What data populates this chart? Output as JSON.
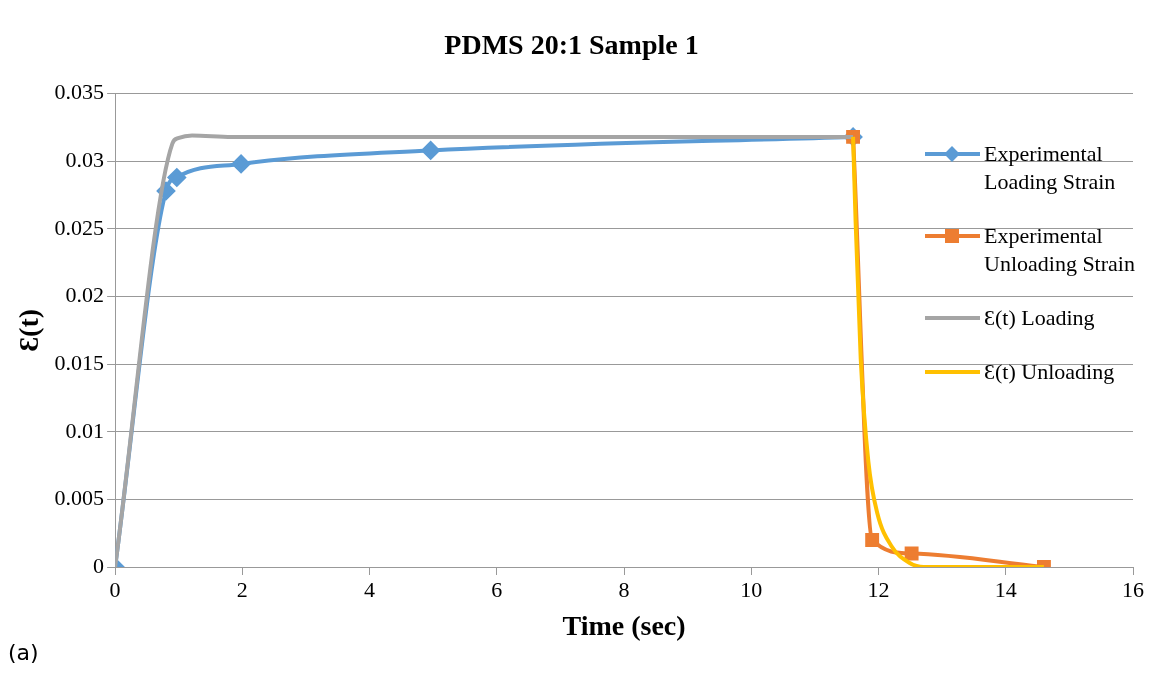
{
  "chart_data": {
    "type": "line",
    "title": "PDMS 20:1 Sample 1",
    "xlabel": "Time (sec)",
    "ylabel": "Ɛ(t)",
    "annotations": [
      "(a)"
    ],
    "series": [
      {
        "name": "Experimental Loading Strain",
        "color": "#5b9bd5",
        "marker": "diamond",
        "x": [
          0,
          0.8,
          0.97,
          1.98,
          4.96,
          11.6
        ],
        "values": [
          0,
          0.0278,
          0.0288,
          0.0298,
          0.0308,
          0.0318
        ]
      },
      {
        "name": "Experimental Unloading Strain",
        "color": "#ed7d31",
        "marker": "square",
        "x": [
          11.6,
          11.9,
          12.52,
          14.6
        ],
        "values": [
          0.0318,
          0.002,
          0.001,
          0
        ]
      },
      {
        "name": "Ɛ(t) Loading",
        "color": "#a5a5a5",
        "marker": "none",
        "x": [
          0,
          0.9,
          0.99,
          1.21,
          1.83,
          11.6
        ],
        "values": [
          0,
          0.0313,
          0.0317,
          0.0319,
          0.0318,
          0.0318
        ]
      },
      {
        "name": "Ɛ(t) Unloading",
        "color": "#ffc000",
        "marker": "none",
        "x": [
          11.6,
          11.64,
          11.72,
          11.84,
          11.98,
          12.21,
          12.49,
          12.71,
          14.6
        ],
        "values": [
          0.0318,
          0.0255,
          0.0154,
          0.0078,
          0.004,
          0.0015,
          0.0003,
          0,
          0
        ]
      }
    ],
    "xlim": [
      0,
      16
    ],
    "xticks": [
      0,
      2,
      4,
      6,
      8,
      10,
      12,
      14,
      16
    ],
    "ylim": [
      0,
      0.035
    ],
    "yticks": [
      0,
      0.005,
      0.01,
      0.015,
      0.02,
      0.025,
      0.03,
      0.035
    ],
    "grid": "y",
    "legend": "right"
  }
}
